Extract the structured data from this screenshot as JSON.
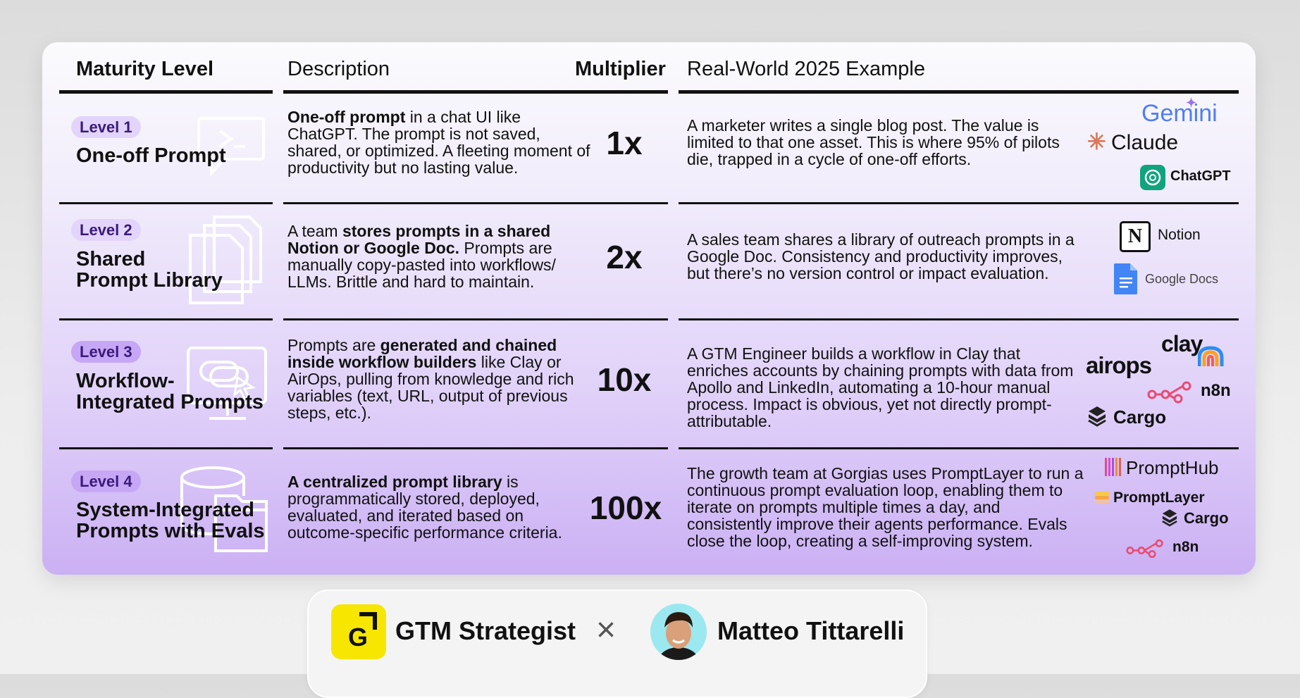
{
  "headers": {
    "maturity": "Maturity Level",
    "description": "Description",
    "multiplier": "Multiplier",
    "example": "Real-World 2025 Example"
  },
  "rows": [
    {
      "badge": "Level 1",
      "title_lines": [
        "One-off Prompt"
      ],
      "icon": "chat-bubble-icon",
      "desc_bold": "One-off prompt",
      "desc_rest": " in a chat UI like ChatGPT. The prompt is not saved, shared, or optimized. A fleeting moment of productivity but no lasting value.",
      "multiplier": "1x",
      "example": "A marketer writes a single blog post. The value is limited to that one asset. This is where 95% of pilots die, trapped in a cycle of one-off efforts.",
      "logos": [
        "Gemini",
        "Claude",
        "ChatGPT"
      ]
    },
    {
      "badge": "Level 2",
      "title_lines": [
        "Shared",
        "Prompt Library"
      ],
      "icon": "stacked-documents-icon",
      "desc_pre": "A team ",
      "desc_bold": "stores prompts in a shared Notion or Google Doc.",
      "desc_rest": " Prompts are manually copy-pasted into workflows/ LLMs. Brittle and hard to maintain.",
      "multiplier": "2x",
      "example": "A sales team shares a library of outreach prompts in a Google Doc. Consistency and productivity improves, but there’s no version control or impact evaluation.",
      "logos": [
        "Notion",
        "Google Docs"
      ]
    },
    {
      "badge": "Level 3",
      "title_lines": [
        "Workflow-",
        "Integrated Prompts"
      ],
      "icon": "monitor-cursor-icon",
      "desc_pre": "Prompts are ",
      "desc_bold": "generated and chained inside workflow builders",
      "desc_rest": " like Clay or AirOps, pulling from knowledge and rich variables (text, URL, output of previous steps, etc.).",
      "multiplier": "10x",
      "example": "A GTM Engineer builds a workflow in Clay that enriches accounts by chaining prompts with data from Apollo and LinkedIn, automating a 10-hour manual process. Impact is obvious, yet not directly prompt-attributable.",
      "logos": [
        "clay",
        "airops",
        "n8n",
        "Cargo"
      ]
    },
    {
      "badge": "Level 4",
      "title_lines": [
        "System-Integrated",
        "Prompts with Evals"
      ],
      "icon": "database-folder-icon",
      "desc_bold": "A centralized prompt library",
      "desc_rest": " is programmatically stored, deployed, evaluated, and iterated based on outcome-specific performance criteria.",
      "multiplier": "100x",
      "example": "The growth team at Gorgias uses PromptLayer to run a continuous prompt evaluation loop, enabling them to iterate on prompts multiple times a day, and consistently improve their agents performance. Evals close the loop, creating a self-improving system.",
      "logos": [
        "PromptHub",
        "PromptLayer",
        "Cargo",
        "n8n"
      ]
    }
  ],
  "footer": {
    "brand": "GTM Strategist",
    "brand_logo_letter": "G",
    "separator": "×",
    "author": "Matteo Tittarelli"
  },
  "colors": {
    "badge_text": "#3b1a7a",
    "gemini": "#4f7df3",
    "claude": "#d97757",
    "chatgpt": "#10a37f",
    "n8n": "#ea4b71",
    "gtm_yellow": "#f7e600"
  }
}
